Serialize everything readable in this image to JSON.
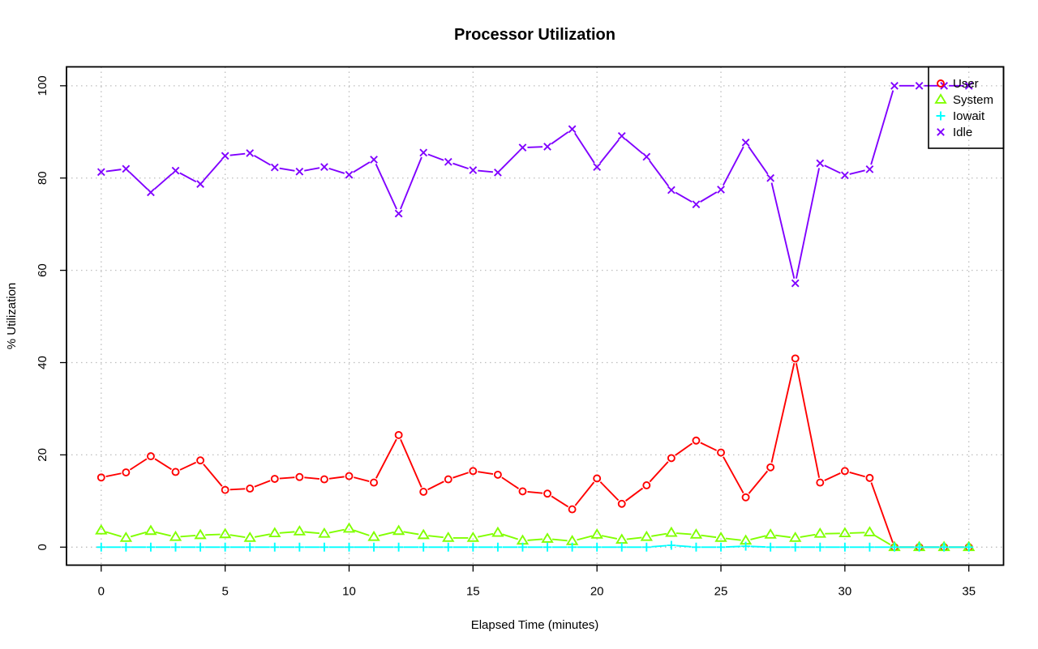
{
  "chart_data": {
    "type": "line",
    "title": "Processor Utilization",
    "xlabel": "Elapsed Time (minutes)",
    "ylabel": "% Utilization",
    "xlim": [
      -1.4,
      36.4
    ],
    "ylim": [
      -3.9,
      104.1
    ],
    "xticks": [
      0,
      5,
      10,
      15,
      20,
      25,
      30,
      35
    ],
    "yticks": [
      0,
      20,
      40,
      60,
      80,
      100
    ],
    "grid": true,
    "legend_position": "top-right",
    "x": [
      0,
      1,
      2,
      3,
      4,
      5,
      6,
      7,
      8,
      9,
      10,
      11,
      12,
      13,
      14,
      15,
      16,
      17,
      18,
      19,
      20,
      21,
      22,
      23,
      24,
      25,
      26,
      27,
      28,
      29,
      30,
      31,
      32,
      33,
      34,
      35
    ],
    "series": [
      {
        "name": "User",
        "color": "#ff0000",
        "marker": "circle",
        "values": [
          15.1,
          16.2,
          19.7,
          16.3,
          18.8,
          12.4,
          12.7,
          14.8,
          15.2,
          14.7,
          15.4,
          14.0,
          24.3,
          12.0,
          14.7,
          16.5,
          15.7,
          12.1,
          11.6,
          8.2,
          14.9,
          9.4,
          13.4,
          19.3,
          23.1,
          20.5,
          10.8,
          17.3,
          40.9,
          14.0,
          16.5,
          15.0,
          0.0,
          0.0,
          0.0,
          0.0
        ]
      },
      {
        "name": "System",
        "color": "#80ff00",
        "marker": "triangle",
        "values": [
          3.6,
          2.0,
          3.5,
          2.2,
          2.6,
          2.8,
          2.0,
          3.0,
          3.4,
          2.9,
          4.0,
          2.2,
          3.5,
          2.6,
          2.0,
          2.0,
          3.1,
          1.4,
          1.8,
          1.3,
          2.7,
          1.6,
          2.2,
          3.1,
          2.7,
          2.0,
          1.4,
          2.7,
          2.0,
          2.9,
          3.0,
          3.2,
          0.0,
          0.0,
          0.0,
          0.0
        ]
      },
      {
        "name": "Iowait",
        "color": "#00ffff",
        "marker": "plus",
        "values": [
          0.0,
          0.0,
          0.0,
          0.0,
          0.0,
          0.0,
          0.0,
          0.0,
          0.0,
          0.0,
          0.0,
          0.0,
          0.0,
          0.0,
          0.0,
          0.0,
          0.0,
          0.0,
          0.0,
          0.0,
          0.0,
          0.0,
          0.0,
          0.4,
          0.0,
          0.0,
          0.2,
          0.0,
          0.0,
          0.0,
          0.0,
          0.0,
          0.0,
          0.0,
          0.0,
          0.0
        ]
      },
      {
        "name": "Idle",
        "color": "#8000ff",
        "marker": "cross",
        "values": [
          81.3,
          82.0,
          76.9,
          81.6,
          78.7,
          84.8,
          85.4,
          82.3,
          81.4,
          82.4,
          80.7,
          84.0,
          72.3,
          85.5,
          83.5,
          81.7,
          81.2,
          86.6,
          86.8,
          90.6,
          82.4,
          89.1,
          84.6,
          77.4,
          74.3,
          77.5,
          87.7,
          80.0,
          57.2,
          83.2,
          80.6,
          81.9,
          100.0,
          100.0,
          100.0,
          100.0
        ]
      }
    ]
  }
}
